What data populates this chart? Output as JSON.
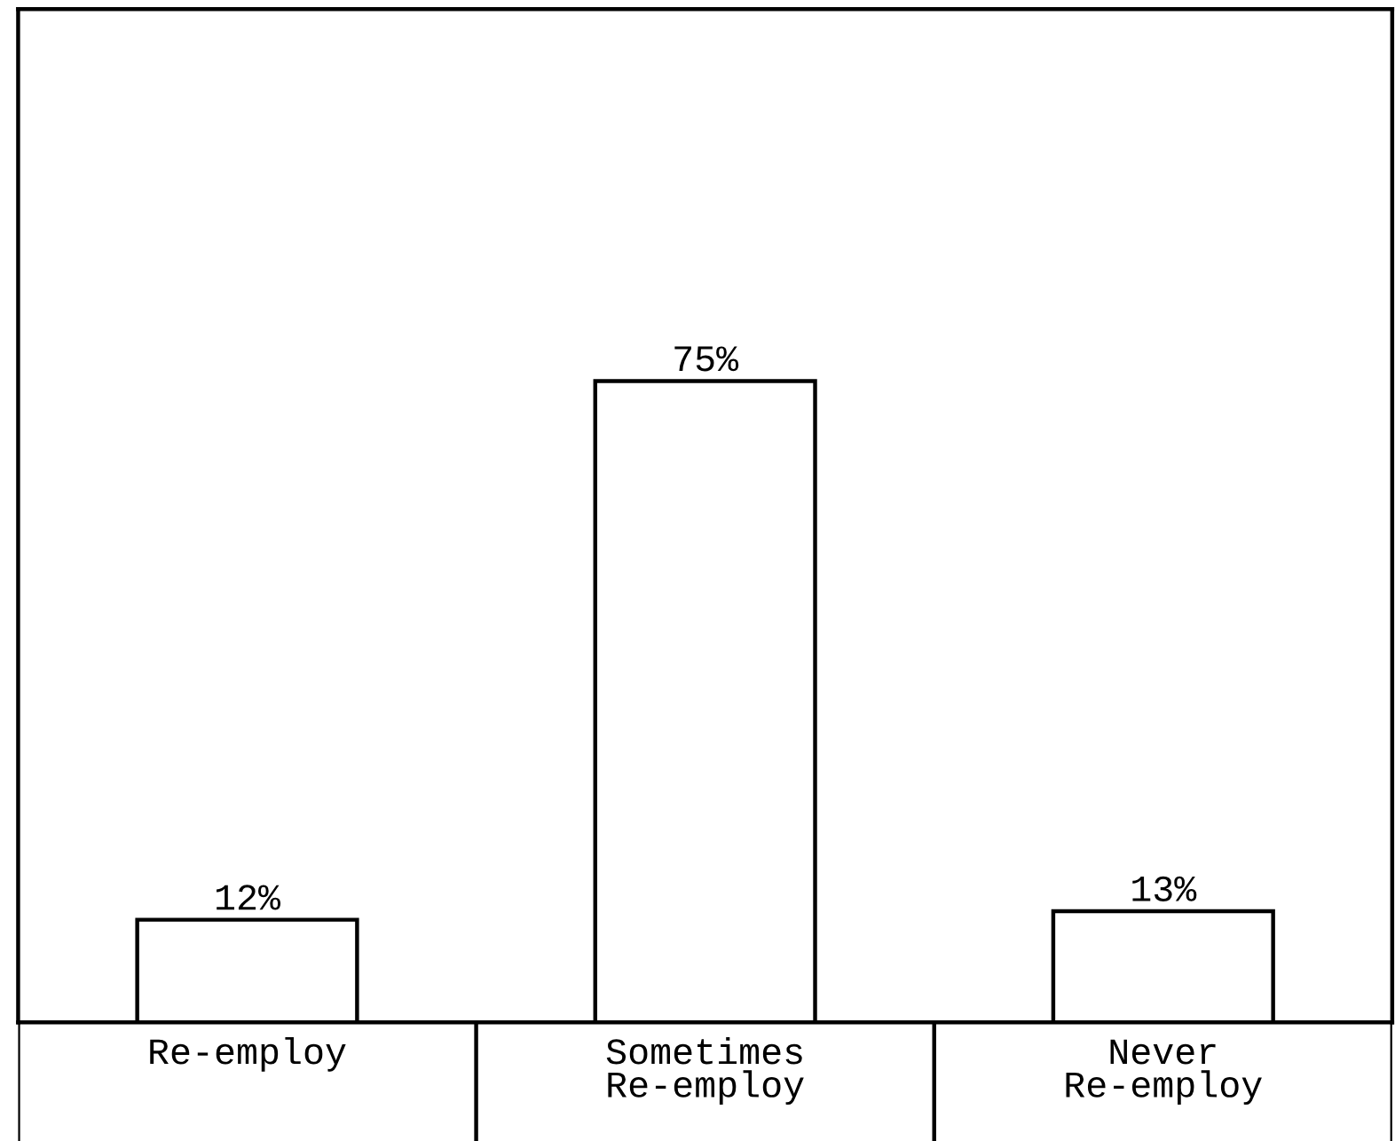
{
  "chart_data": {
    "type": "bar",
    "categories": [
      "Re-employ",
      "Sometimes\nRe-employ",
      "Never\nRe-employ"
    ],
    "values": [
      12,
      75,
      13
    ],
    "value_labels": [
      "12%",
      "75%",
      "13%"
    ],
    "color": "#ffffff",
    "grid": false
  }
}
